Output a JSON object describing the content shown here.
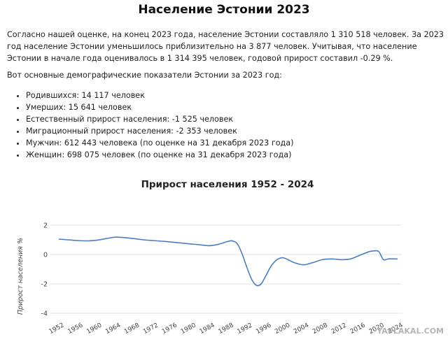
{
  "article": {
    "title": "Население Эстонии 2023",
    "intro": "Согласно нашей оценке, на конец 2023 года, население Эстонии составляло 1 310 518 человек. За 2023 год население Эстонии уменьшилось приблизительно на 3 877 человек. Учитывая, что население Эстонии в начале года оценивалось в 1 314 395 человек, годовой прирост составил -0.29 %.",
    "lead": "Вот основные демографические показатели Эстонии за 2023 год:",
    "stats": [
      "Родившихся: 14 117 человек",
      "Умерших: 15 641 человек",
      "Естественный прирост населения: -1 525 человек",
      "Миграционный прирост населения: -2 353 человек",
      "Мужчин: 612 443 человека (по оценке на 31 декабря 2023 года)",
      "Женщин: 698 075 человек (по оценке на 31 декабря 2023 года)"
    ]
  },
  "watermark": {
    "text": "YAPLAKAL.COM"
  },
  "chart_data": {
    "type": "line",
    "title": "Прирост населения 1952 - 2024",
    "xlabel": "",
    "ylabel": "Прирост населения %",
    "xlim": [
      1952,
      2024
    ],
    "ylim": [
      -4,
      2
    ],
    "xticks": [
      1952,
      1956,
      1960,
      1964,
      1968,
      1972,
      1976,
      1980,
      1984,
      1988,
      1992,
      1996,
      2000,
      2004,
      2008,
      2012,
      2016,
      2020,
      2024
    ],
    "yticks": [
      -4,
      -2,
      0,
      2
    ],
    "grid": true,
    "line_color": "#4a7ebf",
    "series": [
      {
        "x": [
          1952,
          1954,
          1956,
          1958,
          1960,
          1962,
          1964,
          1966,
          1968,
          1970,
          1972,
          1974,
          1976,
          1978,
          1980,
          1982,
          1984,
          1986,
          1988,
          1989,
          1990,
          1991,
          1992,
          1993,
          1994,
          1995,
          1996,
          1997,
          1998,
          1999,
          2000,
          2002,
          2004,
          2006,
          2008,
          2010,
          2012,
          2014,
          2016,
          2018,
          2019,
          2020,
          2021,
          2022,
          2024
        ],
        "y": [
          1.05,
          1.0,
          0.95,
          0.93,
          0.97,
          1.08,
          1.18,
          1.15,
          1.08,
          1.0,
          0.95,
          0.9,
          0.85,
          0.78,
          0.72,
          0.66,
          0.6,
          0.7,
          0.9,
          0.92,
          0.7,
          0.0,
          -0.9,
          -1.7,
          -2.1,
          -2.0,
          -1.45,
          -0.85,
          -0.45,
          -0.25,
          -0.25,
          -0.55,
          -0.7,
          -0.55,
          -0.35,
          -0.3,
          -0.35,
          -0.3,
          -0.05,
          0.2,
          0.25,
          0.2,
          -0.35,
          -0.3,
          -0.3
        ]
      }
    ]
  }
}
